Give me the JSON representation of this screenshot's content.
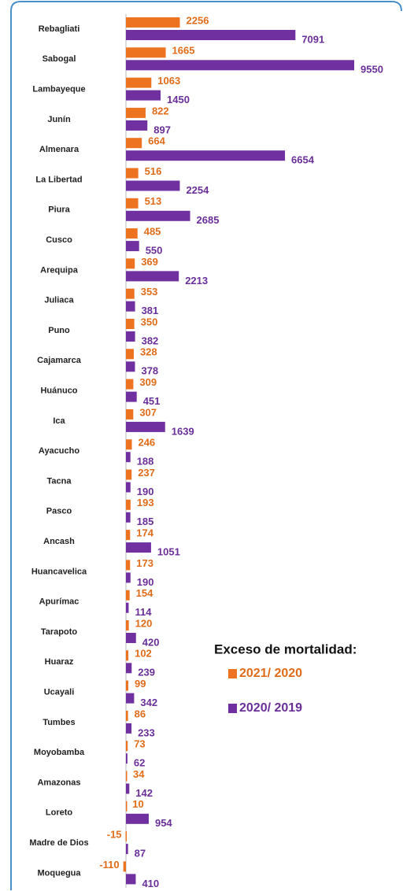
{
  "chart_data": {
    "type": "bar",
    "orientation": "horizontal",
    "legend_title": "Exceso de mortalidad:",
    "categories": [
      "Rebagliati",
      "Sabogal",
      "Lambayeque",
      "Junín",
      "Almenara",
      "La Libertad",
      "Piura",
      "Cusco",
      "Arequipa",
      "Juliaca",
      "Puno",
      "Cajamarca",
      "Huánuco",
      "Ica",
      "Ayacucho",
      "Tacna",
      "Pasco",
      "Ancash",
      "Huancavelica",
      "Apurímac",
      "Tarapoto",
      "Huaraz",
      "Ucayali",
      "Tumbes",
      "Moyobamba",
      "Amazonas",
      "Loreto",
      "Madre de Dios",
      "Moquegua"
    ],
    "series": [
      {
        "name": "2021/ 2020",
        "color": "#ed7320",
        "values": [
          2256,
          1665,
          1063,
          822,
          664,
          516,
          513,
          485,
          369,
          353,
          350,
          328,
          309,
          307,
          246,
          237,
          193,
          174,
          173,
          154,
          120,
          102,
          99,
          86,
          73,
          34,
          10,
          -15,
          -110
        ]
      },
      {
        "name": "2020/ 2019",
        "color": "#7030a0",
        "values": [
          7091,
          9550,
          1450,
          897,
          6654,
          2254,
          2685,
          550,
          2213,
          381,
          382,
          378,
          451,
          1639,
          188,
          190,
          185,
          1051,
          190,
          114,
          420,
          239,
          342,
          233,
          62,
          142,
          954,
          87,
          410
        ]
      }
    ],
    "legend": "lower right"
  }
}
